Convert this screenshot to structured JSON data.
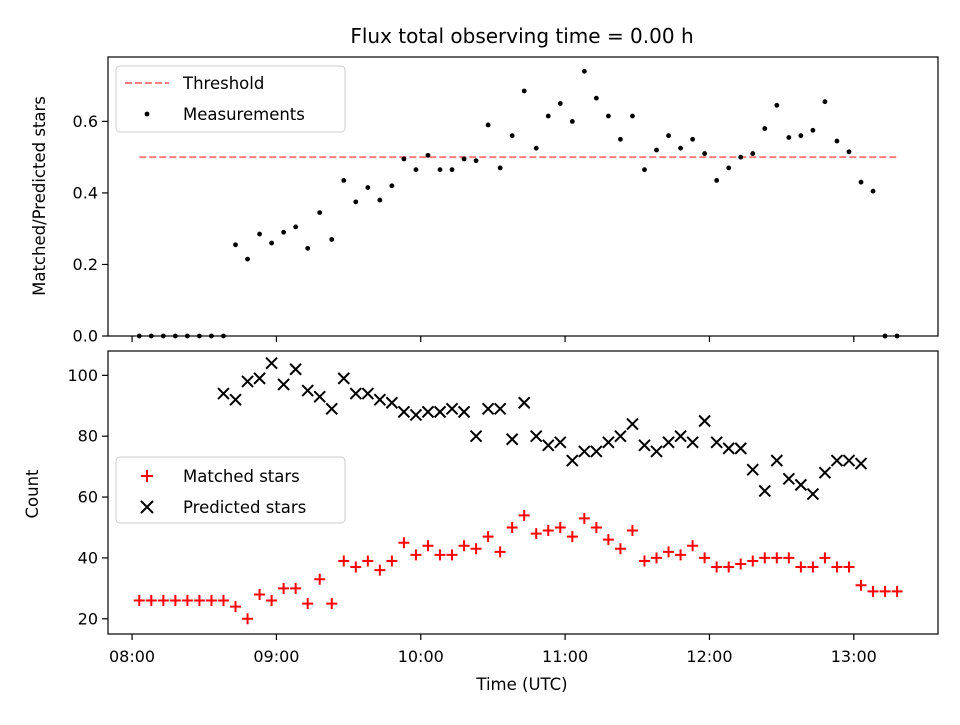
{
  "chart_data": [
    {
      "type": "scatter",
      "title": "Flux total observing time = 0.00 h",
      "xlabel": "",
      "ylabel": "Matched/Predicted stars",
      "ylim": [
        0,
        0.78
      ],
      "yticks": [
        0.0,
        0.2,
        0.4,
        0.6
      ],
      "ytick_labels": [
        "0.0",
        "0.2",
        "0.4",
        "0.6"
      ],
      "xlim": [
        "07:50",
        "13:35"
      ],
      "xticks": [
        "08:00",
        "09:00",
        "10:00",
        "11:00",
        "12:00",
        "13:00"
      ],
      "grid": false,
      "legend_position": "top-left",
      "legend": [
        "Threshold",
        "Measurements"
      ],
      "threshold": {
        "name": "Threshold",
        "y": 0.5,
        "x": [
          "08:03",
          "13:18"
        ],
        "color": "#ff7f7f",
        "style": "dashed"
      },
      "series": [
        {
          "name": "Measurements",
          "color": "#000000",
          "x": [
            "08:03",
            "08:08",
            "08:13",
            "08:18",
            "08:23",
            "08:28",
            "08:33",
            "08:38",
            "08:43",
            "08:48",
            "08:53",
            "08:58",
            "09:03",
            "09:08",
            "09:13",
            "09:18",
            "09:23",
            "09:28",
            "09:33",
            "09:38",
            "09:43",
            "09:48",
            "09:53",
            "09:58",
            "10:03",
            "10:08",
            "10:13",
            "10:18",
            "10:23",
            "10:28",
            "10:33",
            "10:38",
            "10:43",
            "10:48",
            "10:53",
            "10:58",
            "11:03",
            "11:08",
            "11:13",
            "11:18",
            "11:23",
            "11:28",
            "11:33",
            "11:38",
            "11:43",
            "11:48",
            "11:53",
            "11:58",
            "12:03",
            "12:08",
            "12:13",
            "12:18",
            "12:23",
            "12:28",
            "12:33",
            "12:38",
            "12:43",
            "12:48",
            "12:53",
            "12:58",
            "13:03",
            "13:08",
            "13:13",
            "13:18"
          ],
          "y": [
            0.0,
            0.0,
            0.0,
            0.0,
            0.0,
            0.0,
            0.0,
            0.0,
            0.255,
            0.215,
            0.285,
            0.26,
            0.29,
            0.305,
            0.245,
            0.345,
            0.27,
            0.435,
            0.375,
            0.415,
            0.38,
            0.42,
            0.495,
            0.465,
            0.505,
            0.465,
            0.465,
            0.495,
            0.49,
            0.59,
            0.47,
            0.56,
            0.685,
            0.525,
            0.615,
            0.65,
            0.6,
            0.74,
            0.665,
            0.615,
            0.55,
            0.615,
            0.465,
            0.52,
            0.56,
            0.525,
            0.55,
            0.51,
            0.435,
            0.47,
            0.5,
            0.51,
            0.58,
            0.645,
            0.555,
            0.56,
            0.575,
            0.655,
            0.545,
            0.515,
            0.43,
            0.405,
            0.0,
            0.0
          ]
        }
      ]
    },
    {
      "type": "scatter",
      "title": "",
      "xlabel": "Time (UTC)",
      "ylabel": "Count",
      "ylim": [
        15,
        108
      ],
      "yticks": [
        20,
        40,
        60,
        80,
        100
      ],
      "ytick_labels": [
        "20",
        "40",
        "60",
        "80",
        "100"
      ],
      "xlim": [
        "07:50",
        "13:35"
      ],
      "xticks": [
        "08:00",
        "09:00",
        "10:00",
        "11:00",
        "12:00",
        "13:00"
      ],
      "xtick_labels": [
        "08:00",
        "09:00",
        "10:00",
        "11:00",
        "12:00",
        "13:00"
      ],
      "grid": false,
      "legend_position": "center-left",
      "legend": [
        "Matched stars",
        "Predicted stars"
      ],
      "series": [
        {
          "name": "Matched stars",
          "color": "#ff0000",
          "marker": "plus",
          "x": [
            "08:03",
            "08:08",
            "08:13",
            "08:18",
            "08:23",
            "08:28",
            "08:33",
            "08:38",
            "08:43",
            "08:48",
            "08:53",
            "08:58",
            "09:03",
            "09:08",
            "09:13",
            "09:18",
            "09:23",
            "09:28",
            "09:33",
            "09:38",
            "09:43",
            "09:48",
            "09:53",
            "09:58",
            "10:03",
            "10:08",
            "10:13",
            "10:18",
            "10:23",
            "10:28",
            "10:33",
            "10:38",
            "10:43",
            "10:48",
            "10:53",
            "10:58",
            "11:03",
            "11:08",
            "11:13",
            "11:18",
            "11:23",
            "11:28",
            "11:33",
            "11:38",
            "11:43",
            "11:48",
            "11:53",
            "11:58",
            "12:03",
            "12:08",
            "12:13",
            "12:18",
            "12:23",
            "12:28",
            "12:33",
            "12:38",
            "12:43",
            "12:48",
            "12:53",
            "12:58",
            "13:03",
            "13:08",
            "13:13",
            "13:18"
          ],
          "y": [
            26,
            26,
            26,
            26,
            26,
            26,
            26,
            26,
            24,
            20,
            28,
            26,
            30,
            30,
            25,
            33,
            25,
            39,
            37,
            39,
            36,
            39,
            45,
            41,
            44,
            41,
            41,
            44,
            43,
            47,
            42,
            50,
            54,
            48,
            49,
            50,
            47,
            53,
            50,
            46,
            43,
            49,
            39,
            40,
            42,
            41,
            44,
            40,
            37,
            37,
            38,
            39,
            40,
            40,
            40,
            37,
            37,
            40,
            37,
            37,
            31,
            29,
            29,
            29
          ]
        },
        {
          "name": "Predicted stars",
          "color": "#000000",
          "marker": "x",
          "x": [
            "08:38",
            "08:43",
            "08:48",
            "08:53",
            "08:58",
            "09:03",
            "09:08",
            "09:13",
            "09:18",
            "09:23",
            "09:28",
            "09:33",
            "09:38",
            "09:43",
            "09:48",
            "09:53",
            "09:58",
            "10:03",
            "10:08",
            "10:13",
            "10:18",
            "10:23",
            "10:28",
            "10:33",
            "10:38",
            "10:43",
            "10:48",
            "10:53",
            "10:58",
            "11:03",
            "11:08",
            "11:13",
            "11:18",
            "11:23",
            "11:28",
            "11:33",
            "11:38",
            "11:43",
            "11:48",
            "11:53",
            "11:58",
            "12:03",
            "12:08",
            "12:13",
            "12:18",
            "12:23",
            "12:28",
            "12:33",
            "12:38",
            "12:43",
            "12:48",
            "12:53",
            "12:58",
            "13:03"
          ],
          "y": [
            94,
            92,
            98,
            99,
            104,
            97,
            102,
            95,
            93,
            89,
            99,
            94,
            94,
            92,
            91,
            88,
            87,
            88,
            88,
            89,
            88,
            80,
            89,
            89,
            79,
            91,
            80,
            77,
            78,
            72,
            75,
            75,
            78,
            80,
            84,
            77,
            75,
            78,
            80,
            78,
            85,
            78,
            76,
            76,
            69,
            62,
            72,
            66,
            64,
            61,
            68,
            72,
            72,
            71
          ]
        }
      ]
    }
  ]
}
